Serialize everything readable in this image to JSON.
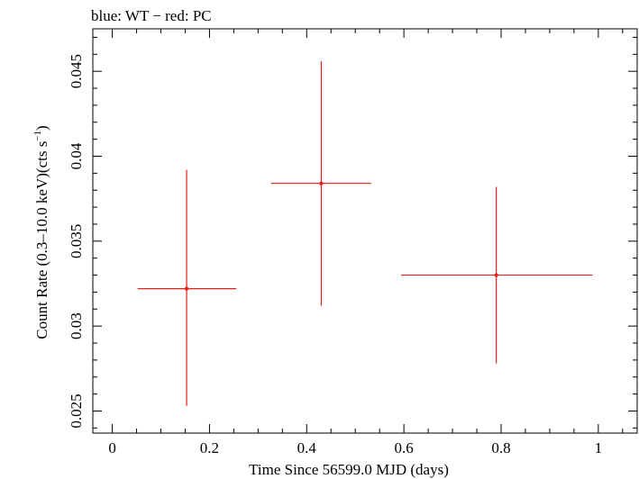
{
  "chart_data": {
    "type": "scatter",
    "title": "blue: WT − red: PC",
    "xlabel": "Time Since 56599.0 MJD (days)",
    "ylabel_main": "Count Rate (0.3–10.0 keV)(cts s",
    "ylabel_sup": "−1",
    "ylabel_close": ")",
    "xlim": [
      -0.04,
      1.08
    ],
    "ylim": [
      0.0237,
      0.0475
    ],
    "xticks": [
      0,
      0.2,
      0.4,
      0.6,
      0.8,
      1
    ],
    "xtick_labels": [
      "0",
      "0.2",
      "0.4",
      "0.6",
      "0.8",
      "1"
    ],
    "yticks": [
      0.025,
      0.03,
      0.035,
      0.04,
      0.045
    ],
    "ytick_labels": [
      "0.025",
      "0.03",
      "0.035",
      "0.04",
      "0.045"
    ],
    "grid": false,
    "series": [
      {
        "color": "#e8231d",
        "points": [
          {
            "x": 0.153,
            "y": 0.0322,
            "xerr": [
              0.052,
              0.255
            ],
            "yerr": [
              0.0253,
              0.0392
            ]
          },
          {
            "x": 0.43,
            "y": 0.0384,
            "xerr": [
              0.327,
              0.533
            ],
            "yerr": [
              0.0312,
              0.0456
            ]
          },
          {
            "x": 0.79,
            "y": 0.033,
            "xerr": [
              0.594,
              0.988
            ],
            "yerr": [
              0.0278,
              0.0382
            ]
          }
        ]
      }
    ]
  }
}
